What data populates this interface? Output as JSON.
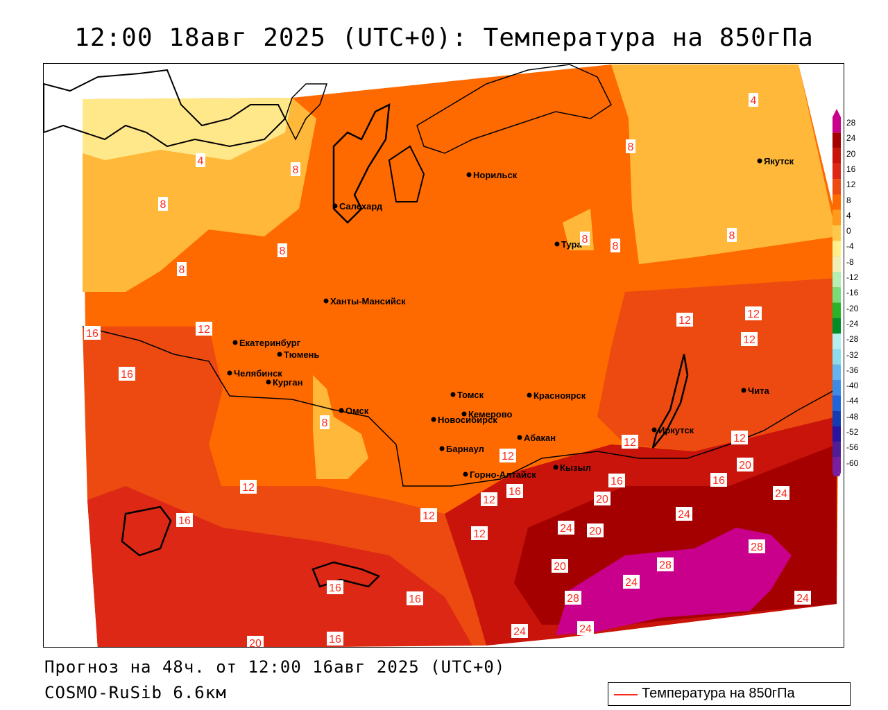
{
  "title": "12:00 18авг 2025 (UTC+0): Температура на 850гПа",
  "forecast_line": "Прогноз на 48ч. от 12:00 16авг 2025 (UTC+0)",
  "model_line": "COSMO-RuSib 6.6км",
  "legend": {
    "label": "Температура на 850гПа",
    "line_color": "#ff2a1a"
  },
  "colorbar": {
    "ticks": [
      "28",
      "24",
      "20",
      "16",
      "12",
      "8",
      "4",
      "0",
      "-4",
      "-8",
      "-12",
      "-16",
      "-20",
      "-24",
      "-28",
      "-32",
      "-36",
      "-40",
      "-44",
      "-48",
      "-52",
      "-56",
      "-60"
    ],
    "colors": [
      "#c8008c",
      "#a50000",
      "#c8140a",
      "#dc2814",
      "#ec4a10",
      "#ff6a00",
      "#ff9a1a",
      "#ffc84a",
      "#fff08c",
      "#f0f0b4",
      "#b4f0b4",
      "#78dc78",
      "#28b428",
      "#008c28",
      "#b4f0f0",
      "#8cdcf0",
      "#64b4f0",
      "#3c8ce6",
      "#1e64dc",
      "#143cb4",
      "#2814a0",
      "#501e96",
      "#781ea0"
    ]
  },
  "isotherm_labels": [
    {
      "text": "4"
    },
    {
      "text": "4"
    },
    {
      "text": "8"
    },
    {
      "text": "8"
    },
    {
      "text": "8"
    },
    {
      "text": "8"
    },
    {
      "text": "8"
    },
    {
      "text": "8"
    },
    {
      "text": "8"
    },
    {
      "text": "8"
    },
    {
      "text": "8"
    },
    {
      "text": "12"
    },
    {
      "text": "12"
    },
    {
      "text": "12"
    },
    {
      "text": "12"
    },
    {
      "text": "12"
    },
    {
      "text": "12"
    },
    {
      "text": "12"
    },
    {
      "text": "12"
    },
    {
      "text": "12"
    },
    {
      "text": "12"
    },
    {
      "text": "12"
    },
    {
      "text": "16"
    },
    {
      "text": "16"
    },
    {
      "text": "16"
    },
    {
      "text": "16"
    },
    {
      "text": "16"
    },
    {
      "text": "16"
    },
    {
      "text": "16"
    },
    {
      "text": "16"
    },
    {
      "text": "16"
    },
    {
      "text": "20"
    },
    {
      "text": "20"
    },
    {
      "text": "20"
    },
    {
      "text": "20"
    },
    {
      "text": "20"
    },
    {
      "text": "24"
    },
    {
      "text": "24"
    },
    {
      "text": "24"
    },
    {
      "text": "24"
    },
    {
      "text": "24"
    },
    {
      "text": "24"
    },
    {
      "text": "24"
    },
    {
      "text": "28"
    },
    {
      "text": "28"
    },
    {
      "text": "28"
    }
  ],
  "cities": [
    {
      "name": "Норильск"
    },
    {
      "name": "Якутск"
    },
    {
      "name": "Салехард"
    },
    {
      "name": "Тура"
    },
    {
      "name": "Ханты-Мансийск"
    },
    {
      "name": "Екатеринбург"
    },
    {
      "name": "Тюмень"
    },
    {
      "name": "Челябинск"
    },
    {
      "name": "Курган"
    },
    {
      "name": "Омск"
    },
    {
      "name": "Новосибирск"
    },
    {
      "name": "Томск"
    },
    {
      "name": "Кемерово"
    },
    {
      "name": "Красноярск"
    },
    {
      "name": "Абакан"
    },
    {
      "name": "Барнаул"
    },
    {
      "name": "Горно-Алтайск"
    },
    {
      "name": "Кызыл"
    },
    {
      "name": "Иркутск"
    },
    {
      "name": "Чита"
    }
  ]
}
